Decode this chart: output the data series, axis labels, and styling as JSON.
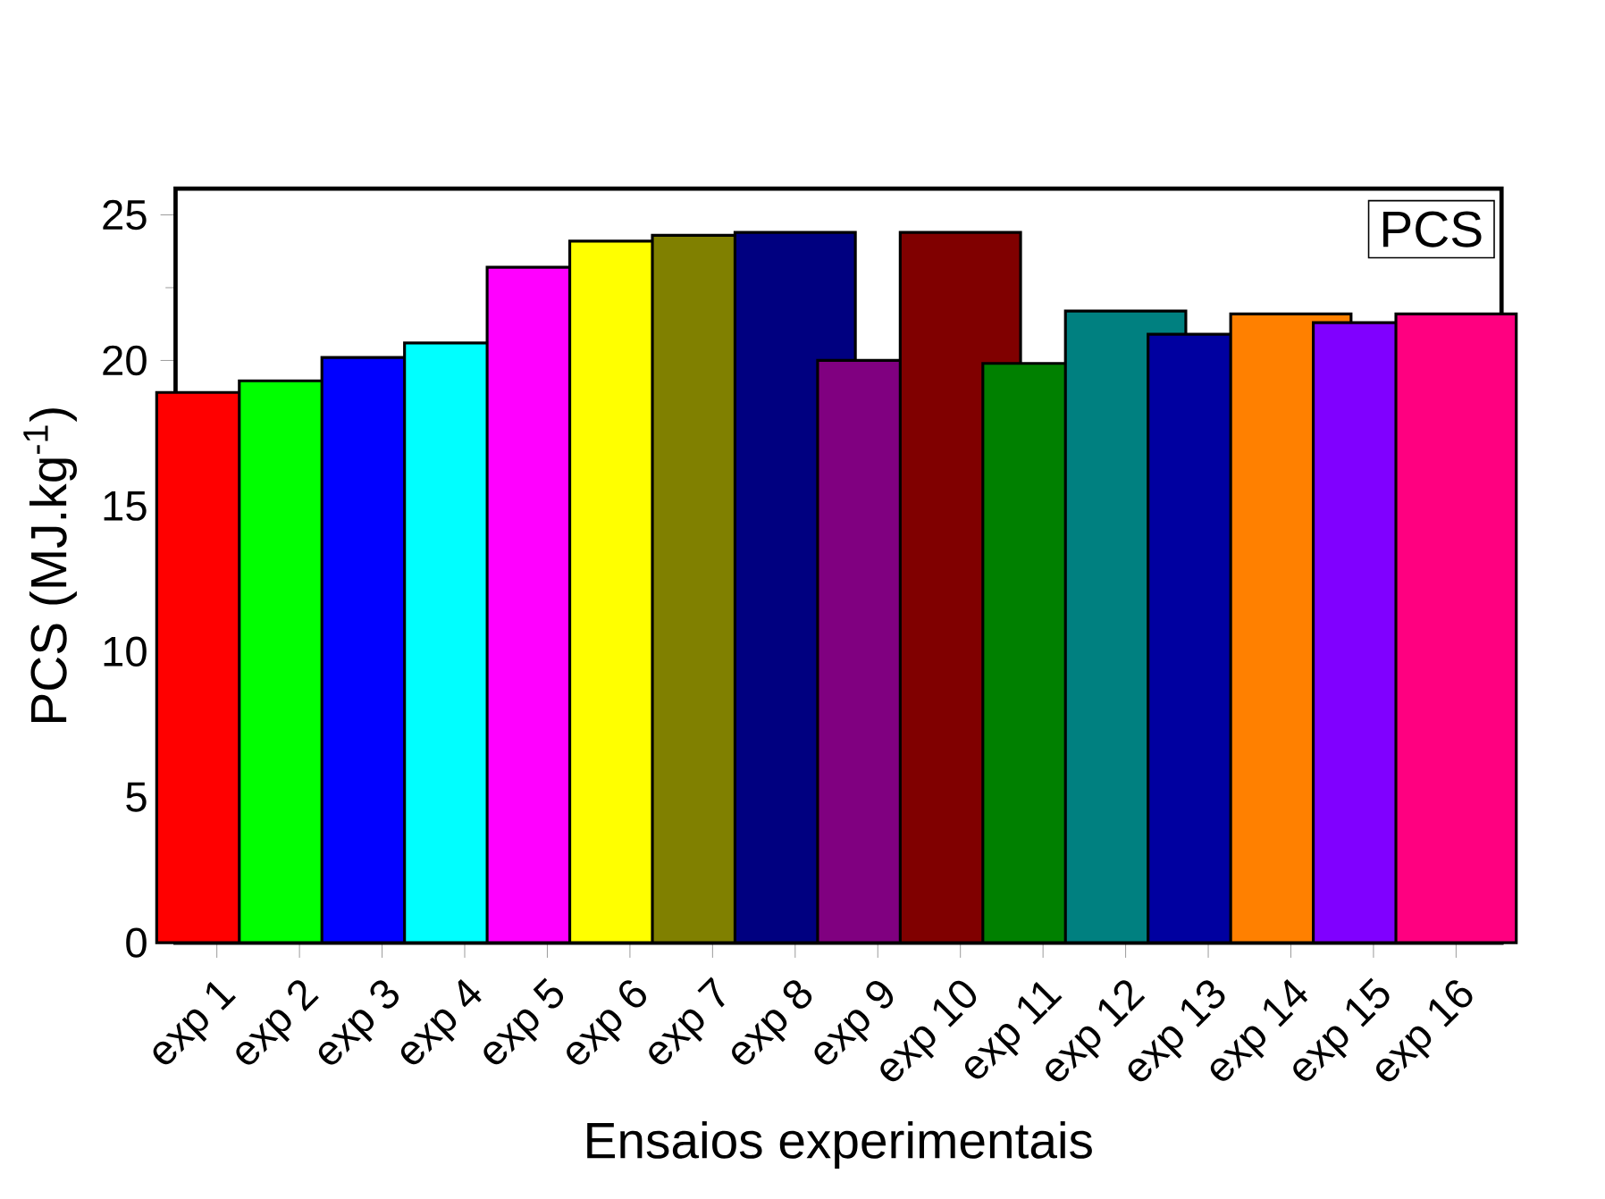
{
  "chart_data": {
    "type": "bar",
    "xlabel": "Ensaios experimentais",
    "ylabel": "PCS (MJ.kg$^{-1}$)",
    "annotations": [
      "PCS"
    ],
    "categories": [
      "exp 1",
      "exp 2",
      "exp 3",
      "exp 4",
      "exp 5",
      "exp 6",
      "exp 7",
      "exp 8",
      "exp 9",
      "exp 10",
      "exp 11",
      "exp 12",
      "exp 13",
      "exp 14",
      "exp 15",
      "exp 16"
    ],
    "values": [
      18.9,
      19.3,
      20.1,
      20.6,
      23.2,
      24.1,
      24.3,
      24.4,
      20.0,
      24.4,
      19.9,
      21.7,
      20.9,
      21.6,
      21.3,
      21.6
    ],
    "colors": [
      "#ff0000",
      "#00ff00",
      "#0000ff",
      "#00ffff",
      "#ff00ff",
      "#ffff00",
      "#808000",
      "#000080",
      "#800080",
      "#800000",
      "#008000",
      "#008080",
      "#0000a0",
      "#ff8000",
      "#8000ff",
      "#ff0080"
    ],
    "ylim": [
      0,
      25.9
    ],
    "yticks": [
      0,
      5,
      10,
      15,
      20,
      25
    ],
    "grid": false
  }
}
